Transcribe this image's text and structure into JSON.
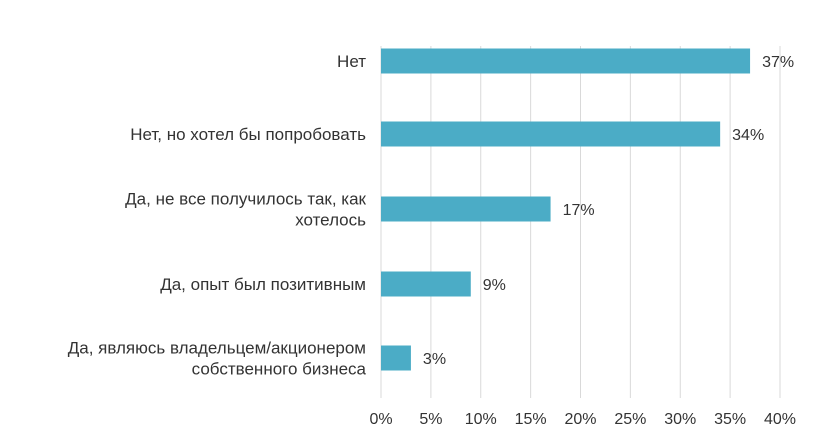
{
  "chart_data": {
    "type": "bar",
    "orientation": "horizontal",
    "categories": [
      [
        "Нет"
      ],
      [
        "Нет, но хотел бы попробовать"
      ],
      [
        "Да, не все получилось так, как",
        "хотелось"
      ],
      [
        "Да, опыт был позитивным"
      ],
      [
        "Да, являюсь владельцем/акционером",
        "собственного бизнеса"
      ]
    ],
    "values": [
      37,
      34,
      17,
      9,
      3
    ],
    "value_labels": [
      "37%",
      "34%",
      "17%",
      "9%",
      "3%"
    ],
    "xlim": [
      0,
      40
    ],
    "x_ticks": [
      0,
      5,
      10,
      15,
      20,
      25,
      30,
      35,
      40
    ],
    "x_tick_labels": [
      "0%",
      "5%",
      "10%",
      "15%",
      "20%",
      "25%",
      "30%",
      "35%",
      "40%"
    ],
    "grid": true,
    "colors": {
      "bar": "#4BACC6",
      "grid": "#D9D9D9",
      "text": "#333333"
    }
  }
}
